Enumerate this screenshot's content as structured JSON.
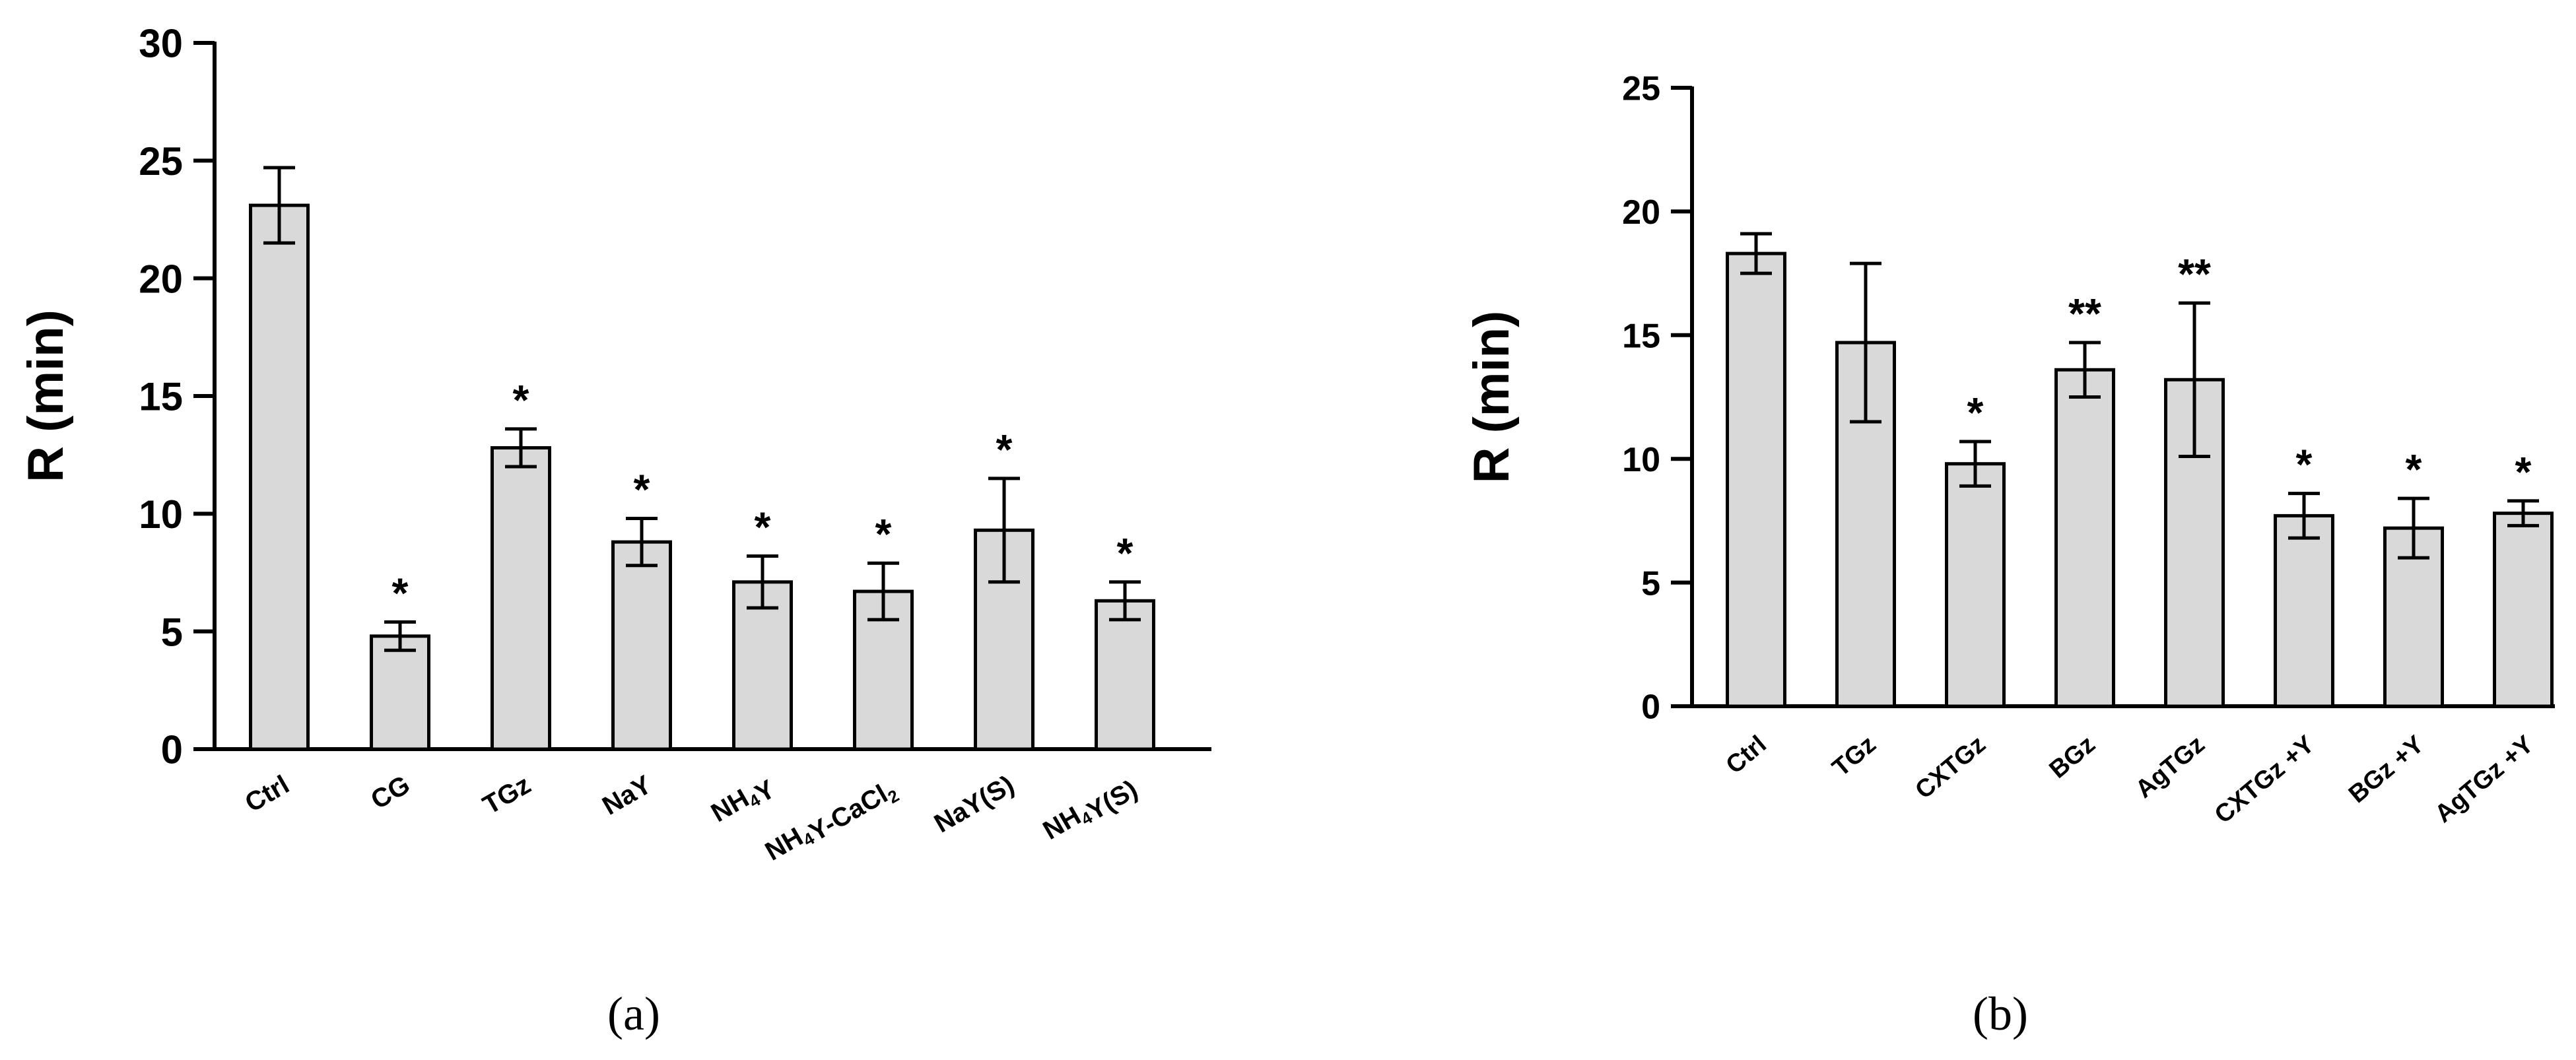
{
  "chart_data": [
    {
      "type": "bar",
      "panel_label": "(a)",
      "ylabel": "R (min)",
      "ylim": [
        0,
        30
      ],
      "yticks": [
        0,
        5,
        10,
        15,
        20,
        25,
        30
      ],
      "bar_color": "#d9d9d9",
      "categories": [
        {
          "main": "Ctrl"
        },
        {
          "main": "CG"
        },
        {
          "main": "TGz"
        },
        {
          "main": "NaY"
        },
        {
          "main": "NH",
          "sub1": "4",
          "main2": "Y"
        },
        {
          "main": "NH",
          "sub1": "4",
          "main2": "Y-CaCl",
          "sub2": "2"
        },
        {
          "main": "NaY(S)"
        },
        {
          "main": "NH",
          "sub1": "4",
          "main2": "Y(S)"
        }
      ],
      "values": [
        23.1,
        4.8,
        12.8,
        8.8,
        7.1,
        6.7,
        9.3,
        6.3
      ],
      "errors": [
        1.6,
        0.6,
        0.8,
        1.0,
        1.1,
        1.2,
        2.2,
        0.8
      ],
      "significance": [
        "",
        "*",
        "*",
        "*",
        "*",
        "*",
        "*",
        "*"
      ]
    },
    {
      "type": "bar",
      "panel_label": "(b)",
      "ylabel": "R (min)",
      "ylim": [
        0,
        25
      ],
      "yticks": [
        0,
        5,
        10,
        15,
        20,
        25
      ],
      "bar_color": "#d9d9d9",
      "categories": [
        {
          "main": "Ctrl"
        },
        {
          "main": "TGz"
        },
        {
          "main": "CXTGz"
        },
        {
          "main": "BGz"
        },
        {
          "main": "AgTGz"
        },
        {
          "main": "CXTGz +Y"
        },
        {
          "main": "BGz +Y"
        },
        {
          "main": "AgTGz +Y"
        }
      ],
      "values": [
        18.3,
        14.7,
        9.8,
        13.6,
        13.2,
        7.7,
        7.2,
        7.8
      ],
      "errors": [
        0.8,
        3.2,
        0.9,
        1.1,
        3.1,
        0.9,
        1.2,
        0.5
      ],
      "significance": [
        "",
        "",
        "*",
        "**",
        "**",
        "*",
        "*",
        "*"
      ]
    }
  ]
}
